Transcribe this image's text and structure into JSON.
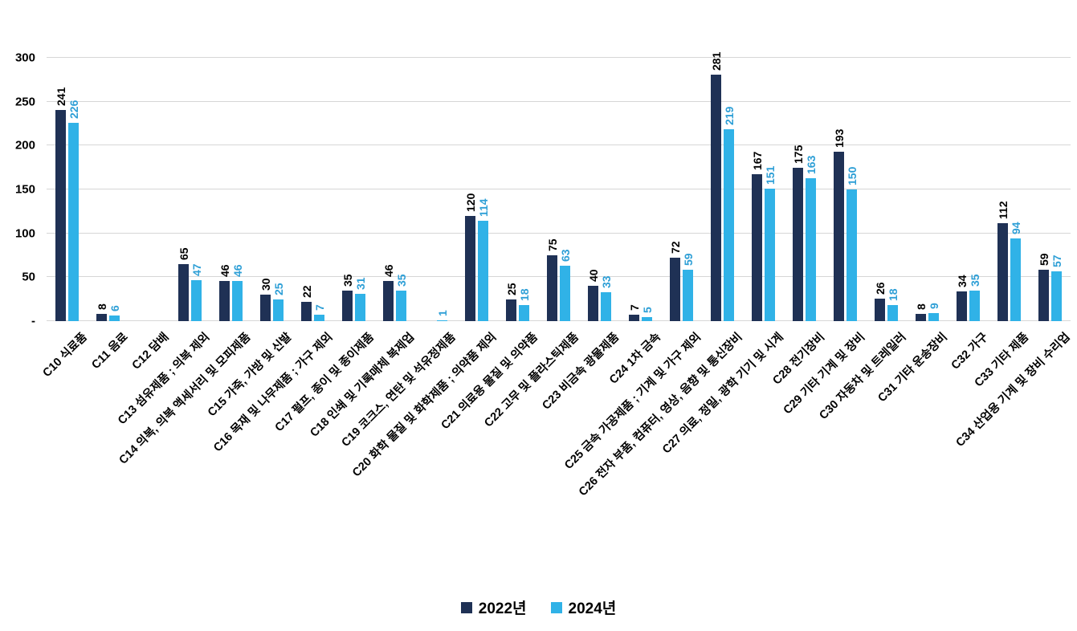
{
  "chart_data": {
    "type": "bar",
    "title": "",
    "xlabel": "",
    "ylabel": "",
    "ylim": [
      0,
      300
    ],
    "grid": true,
    "legend_position": "bottom",
    "y_ticks": [
      {
        "label": "-",
        "value": 0
      },
      {
        "label": "50",
        "value": 50
      },
      {
        "label": "100",
        "value": 100
      },
      {
        "label": "150",
        "value": 150
      },
      {
        "label": "200",
        "value": 200
      },
      {
        "label": "250",
        "value": 250
      },
      {
        "label": "300",
        "value": 300
      }
    ],
    "categories": [
      "C10 식료품",
      "C11 음료",
      "C12 담배",
      "C13 섬유제품 ; 의복 제외",
      "C14 의복, 의복 액세서리 및 모피제품",
      "C15 가죽, 가방 및 신발",
      "C16 목재 및 나무제품 ; 가구 제외",
      "C17 펄프, 종이 및 종이제품",
      "C18 인쇄 및 기록매체 복제업",
      "C19 코크스, 연탄 및 석유정제품",
      "C20 화학 물질 및 화학제품 ; 의약품 제외",
      "C21 의료용 물질 및 의약품",
      "C22 고무 및 플라스틱제품",
      "C23 비금속 광물제품",
      "C24 1차 금속",
      "C25 금속 가공제품 ; 기계 및 가구 제외",
      "C26 전자 부품, 컴퓨터, 영상, 음향 및 통신장비",
      "C27 의료, 정밀, 광학 기기 및 시계",
      "C28 전기장비",
      "C29 기타 기계 및 장비",
      "C30 자동차 및 트레일러",
      "C31 기타 운송장비",
      "C32 가구",
      "C33 기타 제품",
      "C34 산업용 기계 및 장비 수리업"
    ],
    "series": [
      {
        "name": "2022년",
        "color": "#1f3155",
        "label_color": "#000000",
        "values": [
          241,
          8,
          0,
          65,
          46,
          30,
          22,
          35,
          46,
          0,
          120,
          25,
          75,
          40,
          7,
          72,
          281,
          167,
          175,
          193,
          26,
          8,
          34,
          112,
          59
        ]
      },
      {
        "name": "2024년",
        "color": "#30b2e7",
        "label_color": "#2e9fd6",
        "values": [
          226,
          6,
          0,
          47,
          46,
          25,
          7,
          31,
          35,
          1,
          114,
          18,
          63,
          33,
          5,
          59,
          219,
          151,
          163,
          150,
          18,
          9,
          35,
          94,
          57
        ]
      }
    ]
  }
}
